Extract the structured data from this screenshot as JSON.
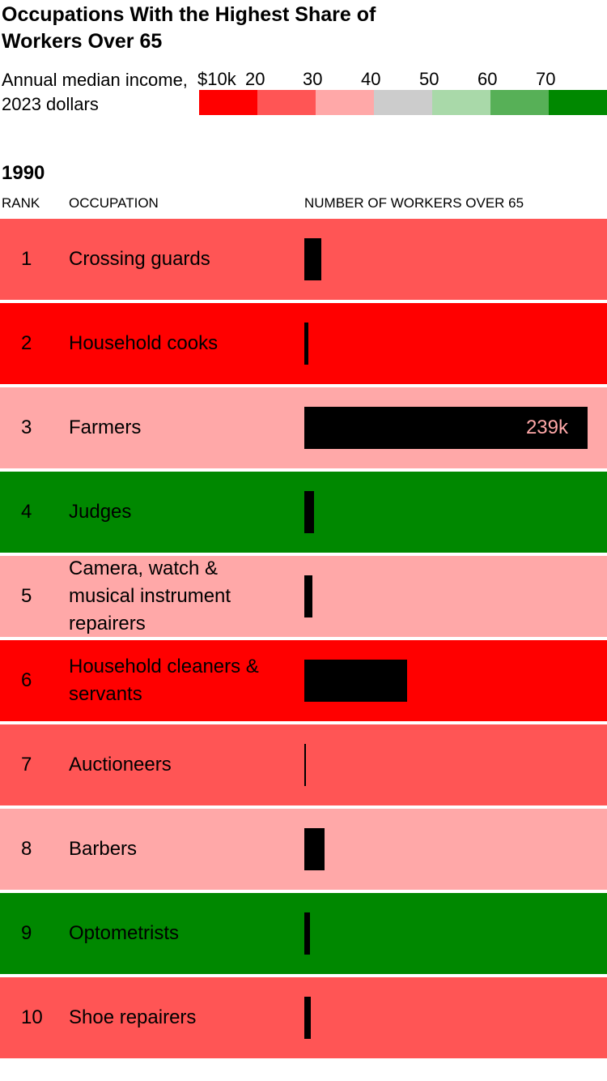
{
  "title": "Occupations With the Highest Share of Workers Over 65",
  "legend": {
    "label": "Annual median income, 2023 dollars",
    "ticks": [
      "$10k",
      "20",
      "30",
      "40",
      "50",
      "60",
      "70"
    ],
    "colors": [
      "#ff0000",
      "#ff5555",
      "#ffa8a8",
      "#cccccc",
      "#a9d9a9",
      "#57b057",
      "#008800"
    ]
  },
  "year": "1990",
  "headers": {
    "rank": "RANK",
    "occupation": "OCCUPATION",
    "workers": "NUMBER OF WORKERS OVER 65"
  },
  "chart_data": {
    "type": "bar",
    "orientation": "horizontal",
    "title": "Occupations With the Highest Share of Workers Over 65",
    "xlabel": "NUMBER OF WORKERS OVER 65",
    "xlim": [
      0,
      239000
    ],
    "rows": [
      {
        "rank": "1",
        "occupation": "Crossing guards",
        "workers": 14000,
        "income_color": "#ff5555"
      },
      {
        "rank": "2",
        "occupation": "Household cooks",
        "workers": 3500,
        "income_color": "#ff0000"
      },
      {
        "rank": "3",
        "occupation": "Farmers",
        "workers": 239000,
        "label": "239k",
        "income_color": "#ffa8a8"
      },
      {
        "rank": "4",
        "occupation": "Judges",
        "workers": 8000,
        "income_color": "#008800"
      },
      {
        "rank": "5",
        "occupation": "Camera, watch & musical instrument repairers",
        "workers": 7000,
        "income_color": "#ffa8a8"
      },
      {
        "rank": "6",
        "occupation": "Household cleaners & servants",
        "workers": 87000,
        "income_color": "#ff0000"
      },
      {
        "rank": "7",
        "occupation": "Auctioneers",
        "workers": 1500,
        "income_color": "#ff5555"
      },
      {
        "rank": "8",
        "occupation": "Barbers",
        "workers": 17000,
        "income_color": "#ffa8a8"
      },
      {
        "rank": "9",
        "occupation": "Optometrists",
        "workers": 5000,
        "income_color": "#008800"
      },
      {
        "rank": "10",
        "occupation": "Shoe repairers",
        "workers": 5500,
        "income_color": "#ff5555"
      }
    ]
  }
}
